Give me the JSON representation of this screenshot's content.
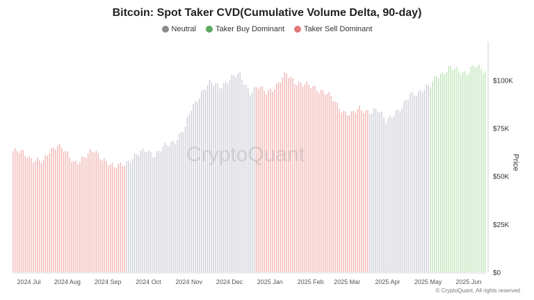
{
  "chart_data": {
    "type": "bar",
    "title": "Bitcoin: Spot Taker CVD(Cumulative Volume Delta, 90-day)",
    "ylabel": "Price",
    "ylim": [
      0,
      120000
    ],
    "y_ticks": [
      "$0",
      "$25K",
      "$50K",
      "$75K",
      "$100K"
    ],
    "y_tick_values": [
      0,
      25000,
      50000,
      75000,
      100000
    ],
    "x_ticks": [
      "2024 Jul",
      "2024 Aug",
      "2024 Sep",
      "2024 Oct",
      "2024 Nov",
      "2024 Dec",
      "2025 Jan",
      "2025 Feb",
      "2025 Mar",
      "2025 Apr",
      "2025 May",
      "2025 Jun"
    ],
    "x_tick_index": [
      6,
      25,
      45,
      65,
      85,
      105,
      125,
      145,
      163,
      183,
      203,
      223
    ],
    "legend": [
      {
        "name": "Neutral",
        "color": "#8c8c8c"
      },
      {
        "name": "Taker Buy Dominant",
        "color": "#5fa85f"
      },
      {
        "name": "Taker Sell Dominant",
        "color": "#e07b7b"
      }
    ],
    "colors": {
      "neutral": "#cfd0d8",
      "buy": "#bfe6b8",
      "sell": "#f2b7b7"
    },
    "regimes": [
      {
        "start": 0,
        "end": 55,
        "state": "sell"
      },
      {
        "start": 56,
        "end": 119,
        "state": "neutral"
      },
      {
        "start": 120,
        "end": 175,
        "state": "sell"
      },
      {
        "start": 176,
        "end": 205,
        "state": "neutral"
      },
      {
        "start": 206,
        "end": 233,
        "state": "buy"
      }
    ],
    "anchors": [
      [
        0,
        63000
      ],
      [
        5,
        62000
      ],
      [
        10,
        59000
      ],
      [
        15,
        57000
      ],
      [
        18,
        63000
      ],
      [
        22,
        67000
      ],
      [
        26,
        62000
      ],
      [
        30,
        57000
      ],
      [
        35,
        60000
      ],
      [
        40,
        63000
      ],
      [
        45,
        59000
      ],
      [
        50,
        54000
      ],
      [
        55,
        57000
      ],
      [
        60,
        60000
      ],
      [
        66,
        64000
      ],
      [
        70,
        61000
      ],
      [
        76,
        66000
      ],
      [
        80,
        69000
      ],
      [
        85,
        75000
      ],
      [
        88,
        85000
      ],
      [
        93,
        94000
      ],
      [
        97,
        98000
      ],
      [
        102,
        97000
      ],
      [
        108,
        101000
      ],
      [
        112,
        103000
      ],
      [
        117,
        94000
      ],
      [
        121,
        96000
      ],
      [
        125,
        94000
      ],
      [
        130,
        97000
      ],
      [
        135,
        103000
      ],
      [
        140,
        99000
      ],
      [
        145,
        97000
      ],
      [
        150,
        96000
      ],
      [
        155,
        93000
      ],
      [
        160,
        87000
      ],
      [
        163,
        84000
      ],
      [
        167,
        82000
      ],
      [
        171,
        85000
      ],
      [
        175,
        84000
      ],
      [
        180,
        84000
      ],
      [
        184,
        79000
      ],
      [
        188,
        83000
      ],
      [
        192,
        85000
      ],
      [
        196,
        93000
      ],
      [
        200,
        94000
      ],
      [
        203,
        95000
      ],
      [
        206,
        97000
      ],
      [
        209,
        103000
      ],
      [
        213,
        104000
      ],
      [
        216,
        106000
      ],
      [
        220,
        105000
      ],
      [
        224,
        104000
      ],
      [
        228,
        107000
      ],
      [
        233,
        105000
      ]
    ],
    "bar_count": 234
  },
  "watermark": "CryptoQuant",
  "credit": "© CryptoQuant. All rights reserved"
}
